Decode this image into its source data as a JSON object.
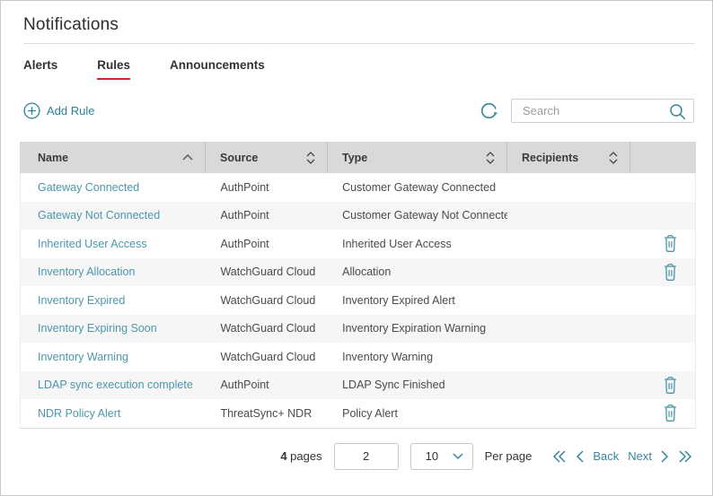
{
  "page": {
    "title": "Notifications"
  },
  "tabs": {
    "alerts": "Alerts",
    "rules": "Rules",
    "announcements": "Announcements",
    "active": "Rules"
  },
  "toolbar": {
    "add_rule_label": "Add Rule",
    "search_placeholder": "Search",
    "icons": {
      "add": "plus-circle-icon",
      "refresh": "refresh-icon",
      "search": "magnifier-icon"
    }
  },
  "table": {
    "columns": [
      {
        "label": "Name",
        "sort": "asc"
      },
      {
        "label": "Source",
        "sort": "both"
      },
      {
        "label": "Type",
        "sort": "both"
      },
      {
        "label": "Recipients",
        "sort": "both"
      },
      {
        "label": "",
        "sort": "none"
      }
    ],
    "rows": [
      {
        "name": "Gateway Connected",
        "source": "AuthPoint",
        "type": "Customer Gateway Connected",
        "recipients": "",
        "deletable": false
      },
      {
        "name": "Gateway Not Connected",
        "source": "AuthPoint",
        "type": "Customer Gateway Not Connected",
        "recipients": "",
        "deletable": false
      },
      {
        "name": "Inherited User Access",
        "source": "AuthPoint",
        "type": "Inherited User Access",
        "recipients": "",
        "deletable": true
      },
      {
        "name": "Inventory Allocation",
        "source": "WatchGuard Cloud",
        "type": "Allocation",
        "recipients": "",
        "deletable": true
      },
      {
        "name": "Inventory Expired",
        "source": "WatchGuard Cloud",
        "type": "Inventory Expired Alert",
        "recipients": "",
        "deletable": false
      },
      {
        "name": "Inventory Expiring Soon",
        "source": "WatchGuard Cloud",
        "type": "Inventory Expiration Warning",
        "recipients": "",
        "deletable": false
      },
      {
        "name": "Inventory Warning",
        "source": "WatchGuard Cloud",
        "type": "Inventory Warning",
        "recipients": "",
        "deletable": false
      },
      {
        "name": "LDAP sync execution complete",
        "source": "AuthPoint",
        "type": "LDAP Sync Finished",
        "recipients": "",
        "deletable": true
      },
      {
        "name": "NDR Policy Alert",
        "source": "ThreatSync+ NDR",
        "type": "Policy Alert",
        "recipients": "",
        "deletable": true
      }
    ],
    "delete_icon": "trash-icon",
    "sort_icons": {
      "asc": "chevron-up-icon",
      "both": "chevron-up-down-icon"
    }
  },
  "pagination": {
    "pages_count": "4",
    "pages_label": "pages",
    "current_page": "2",
    "per_page_value": "10",
    "per_page_label": "Per page",
    "back_label": "Back",
    "next_label": "Next",
    "icons": [
      "double-chevron-left-icon",
      "chevron-left-icon",
      "chevron-right-icon",
      "double-chevron-right-icon"
    ]
  },
  "colors": {
    "accent_teal": "#35879c",
    "link_teal": "#4a97ac",
    "active_tab_red": "#d22630",
    "header_bg": "#d9d9d9",
    "row_stripe": "#f6f6f6"
  }
}
